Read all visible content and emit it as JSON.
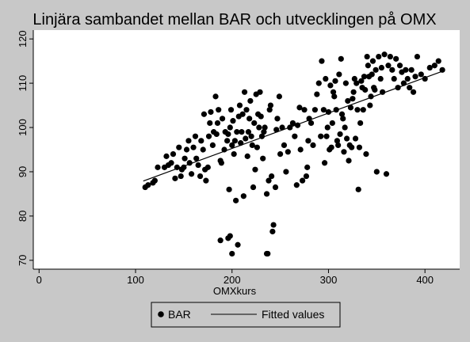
{
  "chart_data": {
    "type": "scatter",
    "title": "Linjära sambandet mellan BAR och utvecklingen på OMX",
    "xlabel": "OMXkurs",
    "ylabel": "",
    "xlim": [
      0,
      420
    ],
    "ylim": [
      68,
      122
    ],
    "xticks": [
      0,
      100,
      200,
      300,
      400
    ],
    "yticks": [
      70,
      80,
      90,
      100,
      110,
      120
    ],
    "grid": false,
    "legend_position": "bottom",
    "series": [
      {
        "name": "BAR",
        "kind": "scatter",
        "color": "#000000",
        "points": [
          [
            110,
            86.5
          ],
          [
            113,
            87
          ],
          [
            118,
            87.5
          ],
          [
            120,
            88
          ],
          [
            123,
            91
          ],
          [
            130,
            91
          ],
          [
            132,
            93.5
          ],
          [
            134,
            91.5
          ],
          [
            137,
            92
          ],
          [
            139,
            94
          ],
          [
            141,
            88.5
          ],
          [
            143,
            91
          ],
          [
            145,
            95.5
          ],
          [
            147,
            89
          ],
          [
            148,
            90.5
          ],
          [
            150,
            91
          ],
          [
            151,
            93
          ],
          [
            153,
            95
          ],
          [
            155,
            97
          ],
          [
            156,
            92
          ],
          [
            158,
            89.5
          ],
          [
            160,
            95.5
          ],
          [
            162,
            98
          ],
          [
            163,
            93
          ],
          [
            165,
            91.5
          ],
          [
            167,
            89
          ],
          [
            168,
            97
          ],
          [
            170,
            95
          ],
          [
            171,
            103
          ],
          [
            172,
            90.5
          ],
          [
            173,
            88
          ],
          [
            175,
            91
          ],
          [
            176,
            98
          ],
          [
            177,
            101
          ],
          [
            178,
            103.5
          ],
          [
            180,
            96
          ],
          [
            181,
            99
          ],
          [
            183,
            107
          ],
          [
            184,
            98.5
          ],
          [
            185,
            101
          ],
          [
            186,
            104
          ],
          [
            188,
            92.5
          ],
          [
            189,
            92
          ],
          [
            190,
            102
          ],
          [
            192,
            95
          ],
          [
            193,
            99
          ],
          [
            195,
            97
          ],
          [
            196,
            98.5
          ],
          [
            197,
            86
          ],
          [
            198,
            100
          ],
          [
            199,
            104
          ],
          [
            200,
            96
          ],
          [
            201,
            101.5
          ],
          [
            202,
            94
          ],
          [
            203,
            97
          ],
          [
            204,
            83.5
          ],
          [
            205,
            99
          ],
          [
            206,
            73.5
          ],
          [
            207,
            102.5
          ],
          [
            208,
            105
          ],
          [
            209,
            96.5
          ],
          [
            210,
            99
          ],
          [
            211,
            103
          ],
          [
            212,
            84.5
          ],
          [
            213,
            108
          ],
          [
            214,
            97.5
          ],
          [
            215,
            104
          ],
          [
            216,
            93.5
          ],
          [
            217,
            99
          ],
          [
            218,
            102
          ],
          [
            219,
            106
          ],
          [
            220,
            98
          ],
          [
            221,
            96
          ],
          [
            222,
            86.5
          ],
          [
            223,
            101
          ],
          [
            224,
            90.5
          ],
          [
            225,
            107.5
          ],
          [
            226,
            95.5
          ],
          [
            227,
            103
          ],
          [
            228,
            100
          ],
          [
            229,
            108
          ],
          [
            230,
            102.5
          ],
          [
            231,
            98
          ],
          [
            232,
            93
          ],
          [
            233,
            99
          ],
          [
            234,
            100
          ],
          [
            236,
            85
          ],
          [
            237,
            71.5
          ],
          [
            238,
            88
          ],
          [
            239,
            104
          ],
          [
            240,
            105
          ],
          [
            241,
            89
          ],
          [
            242,
            76.5
          ],
          [
            243,
            78
          ],
          [
            245,
            86.5
          ],
          [
            246,
            99.5
          ],
          [
            247,
            102
          ],
          [
            249,
            107
          ],
          [
            250,
            94
          ],
          [
            252,
            100
          ],
          [
            254,
            96
          ],
          [
            256,
            90
          ],
          [
            258,
            94.5
          ],
          [
            260,
            100
          ],
          [
            263,
            101
          ],
          [
            265,
            98
          ],
          [
            267,
            87
          ],
          [
            268,
            100.5
          ],
          [
            270,
            104.5
          ],
          [
            271,
            95
          ],
          [
            273,
            88
          ],
          [
            275,
            104
          ],
          [
            277,
            89
          ],
          [
            278,
            91
          ],
          [
            279,
            97
          ],
          [
            280,
            102
          ],
          [
            282,
            101
          ],
          [
            284,
            96
          ],
          [
            286,
            104
          ],
          [
            288,
            107.5
          ],
          [
            290,
            110
          ],
          [
            292,
            98
          ],
          [
            293,
            115
          ],
          [
            295,
            104
          ],
          [
            296,
            92
          ],
          [
            297,
            111
          ],
          [
            298,
            98
          ],
          [
            299,
            100
          ],
          [
            300,
            103.5
          ],
          [
            301,
            95
          ],
          [
            302,
            109.5
          ],
          [
            303,
            95.5
          ],
          [
            304,
            101
          ],
          [
            305,
            108
          ],
          [
            306,
            107
          ],
          [
            307,
            110.5
          ],
          [
            308,
            104
          ],
          [
            309,
            97
          ],
          [
            310,
            96
          ],
          [
            311,
            112
          ],
          [
            312,
            98.5
          ],
          [
            313,
            115.5
          ],
          [
            314,
            103
          ],
          [
            315,
            102
          ],
          [
            316,
            94.5
          ],
          [
            317,
            100
          ],
          [
            318,
            110
          ],
          [
            319,
            97.5
          ],
          [
            320,
            106
          ],
          [
            321,
            92.5
          ],
          [
            322,
            96
          ],
          [
            323,
            104.5
          ],
          [
            324,
            95.5
          ],
          [
            325,
            106.5
          ],
          [
            326,
            108
          ],
          [
            327,
            111
          ],
          [
            328,
            97.5
          ],
          [
            329,
            110
          ],
          [
            330,
            104
          ],
          [
            331,
            86
          ],
          [
            332,
            95.5
          ],
          [
            333,
            101
          ],
          [
            334,
            110.5
          ],
          [
            335,
            109
          ],
          [
            336,
            104
          ],
          [
            337,
            111.5
          ],
          [
            338,
            108.5
          ],
          [
            339,
            94
          ],
          [
            340,
            116
          ],
          [
            341,
            114
          ],
          [
            342,
            111.5
          ],
          [
            343,
            105
          ],
          [
            344,
            107
          ],
          [
            345,
            112
          ],
          [
            346,
            115
          ],
          [
            347,
            109
          ],
          [
            348,
            108.5
          ],
          [
            349,
            113
          ],
          [
            350,
            90
          ],
          [
            352,
            116
          ],
          [
            354,
            111
          ],
          [
            355,
            113.5
          ],
          [
            356,
            108
          ],
          [
            358,
            116.5
          ],
          [
            360,
            89.5
          ],
          [
            362,
            114
          ],
          [
            364,
            116
          ],
          [
            366,
            113
          ],
          [
            368,
            111
          ],
          [
            370,
            115.5
          ],
          [
            372,
            109
          ],
          [
            374,
            114
          ],
          [
            376,
            112.5
          ],
          [
            378,
            110
          ],
          [
            380,
            113
          ],
          [
            382,
            111
          ],
          [
            384,
            109
          ],
          [
            386,
            113
          ],
          [
            388,
            108
          ],
          [
            390,
            111.5
          ],
          [
            392,
            116
          ],
          [
            396,
            112
          ],
          [
            400,
            111
          ],
          [
            405,
            113.5
          ],
          [
            410,
            114
          ],
          [
            414,
            115
          ],
          [
            418,
            113
          ],
          [
            196,
            75
          ],
          [
            198,
            75.5
          ],
          [
            200,
            71.5
          ],
          [
            188,
            74.5
          ],
          [
            236,
            71.5
          ]
        ]
      },
      {
        "name": "Fitted values",
        "kind": "line",
        "color": "#000000",
        "points": [
          [
            108,
            87.9
          ],
          [
            418,
            112.7
          ]
        ]
      }
    ]
  }
}
